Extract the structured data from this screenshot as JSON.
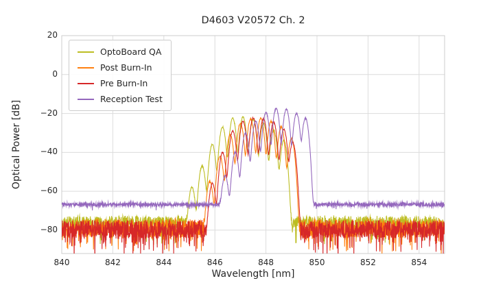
{
  "figure": {
    "background": "#ffffff",
    "text_color": "#262626"
  },
  "chart_data": {
    "type": "line",
    "title": "D4603 V20572 Ch. 2",
    "xlabel": "Wavelength [nm]",
    "ylabel": "Optical Power [dB]",
    "xlim": [
      840,
      855
    ],
    "ylim": [
      -92,
      20
    ],
    "x_ticks": [
      840,
      842,
      844,
      846,
      848,
      850,
      852,
      854
    ],
    "y_ticks": [
      20,
      0,
      -20,
      -40,
      -60,
      -80
    ],
    "grid": true,
    "grid_color": "#dcdcdc",
    "spine_color": "#cccccc",
    "legend_position": "upper left",
    "description": "Optical spectra of a VCSEL channel measured at four test stages; multimode peak structure between ~845 and ~850 nm over a noise floor.",
    "series": [
      {
        "name": "OptoBoard QA",
        "color": "#bcbd22",
        "noise_floor": -76,
        "noise_jitter": 3.2,
        "spike_prob": 0.13,
        "spike_depth": 9,
        "sigma": 0.065,
        "seed": 11,
        "modes": [
          [
            845.1,
            -58
          ],
          [
            845.5,
            -47
          ],
          [
            845.9,
            -36
          ],
          [
            846.3,
            -27
          ],
          [
            846.7,
            -22.5
          ],
          [
            847.1,
            -21.8
          ],
          [
            847.5,
            -23
          ],
          [
            847.9,
            -25
          ],
          [
            848.3,
            -28.5
          ],
          [
            848.7,
            -34
          ]
        ]
      },
      {
        "name": "Post Burn-In",
        "color": "#ff7f0e",
        "noise_floor": -79,
        "noise_jitter": 4.5,
        "spike_prob": 0.15,
        "spike_depth": 11,
        "sigma": 0.065,
        "seed": 22,
        "modes": [
          [
            845.8,
            -55
          ],
          [
            846.2,
            -42
          ],
          [
            846.6,
            -31
          ],
          [
            847.0,
            -25
          ],
          [
            847.4,
            -22.8
          ],
          [
            847.8,
            -22.5
          ],
          [
            848.2,
            -24
          ],
          [
            848.6,
            -27
          ],
          [
            849.0,
            -33
          ]
        ]
      },
      {
        "name": "Pre Burn-In",
        "color": "#d62728",
        "noise_floor": -79.5,
        "noise_jitter": 4.5,
        "spike_prob": 0.16,
        "spike_depth": 12,
        "sigma": 0.065,
        "seed": 33,
        "modes": [
          [
            845.9,
            -56
          ],
          [
            846.3,
            -40
          ],
          [
            846.7,
            -29
          ],
          [
            847.1,
            -24
          ],
          [
            847.5,
            -22.3
          ],
          [
            847.9,
            -22.8
          ],
          [
            848.3,
            -24.5
          ],
          [
            848.7,
            -28
          ],
          [
            849.05,
            -35
          ]
        ]
      },
      {
        "name": "Reception Test",
        "color": "#9467bd",
        "noise_floor": -66.8,
        "noise_jitter": 0.8,
        "spike_prob": 0.03,
        "spike_depth": 2,
        "sigma": 0.065,
        "seed": 44,
        "modes": [
          [
            846.4,
            -52
          ],
          [
            846.8,
            -40
          ],
          [
            847.2,
            -30
          ],
          [
            847.6,
            -24
          ],
          [
            848.0,
            -19.5
          ],
          [
            848.4,
            -17.5
          ],
          [
            848.8,
            -17.8
          ],
          [
            849.2,
            -20
          ],
          [
            849.55,
            -22.5
          ]
        ]
      }
    ]
  }
}
